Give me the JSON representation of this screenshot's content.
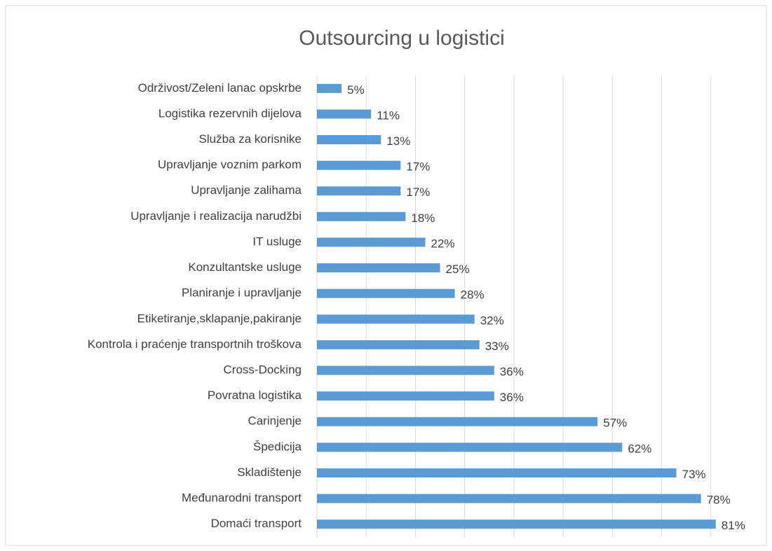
{
  "chart_data": {
    "type": "bar",
    "orientation": "horizontal",
    "title": "Outsourcing u logistici",
    "categories": [
      "Održivost/Zeleni lanac opskrbe",
      "Logistika rezervnih dijelova",
      "Služba za korisnike",
      "Upravljanje voznim parkom",
      "Upravljanje zalihama",
      "Upravljanje i realizacija narudžbi",
      "IT usluge",
      "Konzultantske usluge",
      "Planiranje i upravljanje",
      "Etiketiranje,sklapanje,pakiranje",
      "Kontrola i praćenje transportnih troškova",
      "Cross-Docking",
      "Povratna logistika",
      "Carinjenje",
      "Špedicija",
      "Skladištenje",
      "Međunarodni transport",
      "Domaći transport"
    ],
    "values": [
      5,
      11,
      13,
      17,
      17,
      18,
      22,
      25,
      28,
      32,
      33,
      36,
      36,
      57,
      62,
      73,
      78,
      81
    ],
    "value_labels": [
      "5%",
      "11%",
      "13%",
      "17%",
      "17%",
      "18%",
      "22%",
      "25%",
      "28%",
      "32%",
      "33%",
      "36%",
      "36%",
      "57%",
      "62%",
      "73%",
      "78%",
      "81%"
    ],
    "color": "#5b9bd5",
    "xlim": [
      0,
      90
    ],
    "xticks": [
      0,
      10,
      20,
      30,
      40,
      50,
      60,
      70,
      80
    ],
    "grid": true
  }
}
